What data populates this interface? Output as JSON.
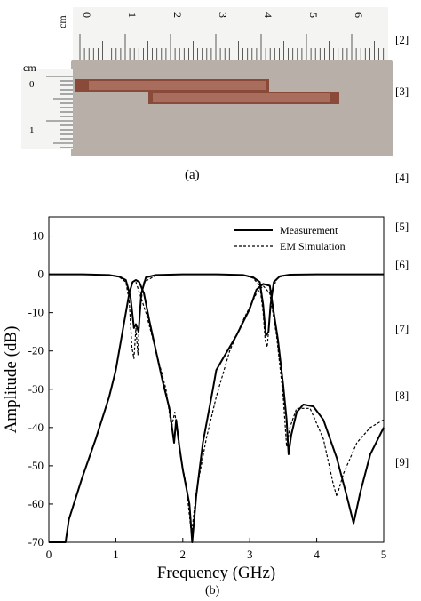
{
  "figure": {
    "photo": {
      "ruler_top_unit": "cm",
      "ruler_top_numbers": [
        "0",
        "1",
        "2",
        "3",
        "4",
        "5",
        "6"
      ],
      "ruler_left_unit": "cm",
      "ruler_left_numbers": [
        "0",
        "1"
      ],
      "board_color": "#b8b0a8",
      "trace_color": "#8a4a3a"
    },
    "caption_a": "(a)",
    "caption_b": "(b)"
  },
  "references": [
    "[2]",
    "[3]",
    "[4]",
    "[5]",
    "[6]",
    "[7]",
    "[8]",
    "[9]"
  ],
  "chart_data": {
    "type": "line",
    "title": "",
    "xlabel": "Frequency (GHz)",
    "ylabel": "Amplitude (dB)",
    "xlim": [
      0,
      5
    ],
    "ylim": [
      -70,
      15
    ],
    "xticks": [
      0,
      1,
      2,
      3,
      4,
      5
    ],
    "yticks": [
      10,
      0,
      -10,
      -20,
      -30,
      -40,
      -50,
      -60,
      -70
    ],
    "grid": false,
    "legend_position": "top-right",
    "series": [
      {
        "name": "Measurement",
        "style": "solid",
        "curves": [
          [
            [
              0,
              0
            ],
            [
              0.5,
              0
            ],
            [
              0.9,
              -0.2
            ],
            [
              1.05,
              -0.6
            ],
            [
              1.15,
              -1.5
            ],
            [
              1.22,
              -6
            ],
            [
              1.27,
              -14
            ],
            [
              1.3,
              -13
            ],
            [
              1.34,
              -15
            ],
            [
              1.38,
              -5
            ],
            [
              1.45,
              -0.8
            ],
            [
              1.6,
              -0.2
            ],
            [
              2.0,
              0
            ],
            [
              2.5,
              0
            ],
            [
              2.9,
              -0.2
            ],
            [
              3.05,
              -0.8
            ],
            [
              3.15,
              -2
            ],
            [
              3.2,
              -8
            ],
            [
              3.24,
              -16
            ],
            [
              3.28,
              -15
            ],
            [
              3.31,
              -8
            ],
            [
              3.36,
              -2
            ],
            [
              3.45,
              -0.5
            ],
            [
              3.6,
              -0.1
            ],
            [
              4.0,
              0
            ],
            [
              5.0,
              0
            ]
          ],
          [
            [
              0.0,
              -70
            ],
            [
              0.25,
              -70
            ],
            [
              0.3,
              -64
            ],
            [
              0.5,
              -53
            ],
            [
              0.7,
              -43
            ],
            [
              0.9,
              -32
            ],
            [
              1.0,
              -25
            ],
            [
              1.1,
              -15
            ],
            [
              1.2,
              -5
            ],
            [
              1.25,
              -2
            ],
            [
              1.3,
              -1.5
            ],
            [
              1.35,
              -2
            ],
            [
              1.42,
              -5
            ],
            [
              1.5,
              -12
            ],
            [
              1.6,
              -20
            ],
            [
              1.7,
              -28
            ],
            [
              1.8,
              -35
            ],
            [
              1.87,
              -44
            ],
            [
              1.9,
              -38
            ],
            [
              1.95,
              -45
            ],
            [
              2.0,
              -51
            ],
            [
              2.1,
              -60
            ],
            [
              2.14,
              -70
            ],
            [
              2.2,
              -58
            ],
            [
              2.3,
              -44
            ],
            [
              2.45,
              -30
            ],
            [
              2.5,
              -25
            ],
            [
              2.6,
              -22
            ],
            [
              2.8,
              -16
            ],
            [
              3.0,
              -9
            ],
            [
              3.1,
              -4
            ],
            [
              3.2,
              -2.5
            ],
            [
              3.3,
              -3
            ],
            [
              3.35,
              -9
            ],
            [
              3.42,
              -17
            ],
            [
              3.5,
              -29
            ],
            [
              3.55,
              -38
            ],
            [
              3.58,
              -47
            ],
            [
              3.62,
              -42
            ],
            [
              3.7,
              -36
            ],
            [
              3.8,
              -34
            ],
            [
              3.95,
              -34.5
            ],
            [
              4.1,
              -38
            ],
            [
              4.3,
              -48
            ],
            [
              4.45,
              -58
            ],
            [
              4.55,
              -65
            ],
            [
              4.65,
              -57
            ],
            [
              4.8,
              -47
            ],
            [
              5.0,
              -40
            ]
          ]
        ]
      },
      {
        "name": "EM Simulation",
        "style": "dashed",
        "curves": [
          [
            [
              0,
              0
            ],
            [
              0.5,
              0
            ],
            [
              0.9,
              -0.2
            ],
            [
              1.05,
              -0.7
            ],
            [
              1.15,
              -2
            ],
            [
              1.2,
              -7
            ],
            [
              1.24,
              -19
            ],
            [
              1.27,
              -22
            ],
            [
              1.3,
              -14
            ],
            [
              1.33,
              -21
            ],
            [
              1.36,
              -9
            ],
            [
              1.42,
              -2
            ],
            [
              1.6,
              -0.3
            ],
            [
              2.0,
              0
            ],
            [
              2.5,
              0
            ],
            [
              2.9,
              -0.2
            ],
            [
              3.05,
              -1
            ],
            [
              3.15,
              -3
            ],
            [
              3.2,
              -10
            ],
            [
              3.23,
              -17
            ],
            [
              3.26,
              -19
            ],
            [
              3.29,
              -13
            ],
            [
              3.33,
              -4
            ],
            [
              3.42,
              -0.8
            ],
            [
              3.6,
              -0.1
            ],
            [
              4.0,
              0
            ],
            [
              5.0,
              0
            ]
          ],
          [
            [
              1.3,
              -2
            ],
            [
              1.45,
              -10
            ],
            [
              1.6,
              -20
            ],
            [
              1.75,
              -30
            ],
            [
              1.83,
              -40
            ],
            [
              1.88,
              -36
            ],
            [
              1.95,
              -46
            ],
            [
              2.05,
              -55
            ],
            [
              2.13,
              -68
            ],
            [
              2.2,
              -57
            ],
            [
              2.35,
              -43
            ],
            [
              2.5,
              -32
            ],
            [
              2.7,
              -20
            ],
            [
              2.9,
              -12
            ],
            [
              3.1,
              -5
            ],
            [
              3.2,
              -3
            ],
            [
              3.3,
              -5
            ],
            [
              3.4,
              -16
            ],
            [
              3.5,
              -32
            ],
            [
              3.55,
              -45
            ],
            [
              3.6,
              -40
            ],
            [
              3.7,
              -35
            ],
            [
              3.9,
              -35
            ],
            [
              4.1,
              -43
            ],
            [
              4.25,
              -55
            ],
            [
              4.3,
              -58
            ],
            [
              4.4,
              -52
            ],
            [
              4.6,
              -44
            ],
            [
              4.8,
              -40
            ],
            [
              5.0,
              -38
            ]
          ]
        ]
      }
    ]
  }
}
